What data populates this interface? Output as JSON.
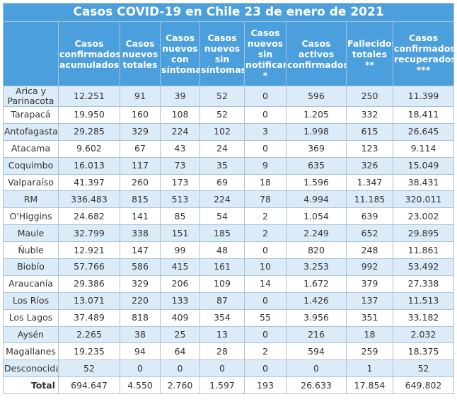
{
  "header": {
    "title": "Casos COVID-19 en Chile 23 de enero de 2021"
  },
  "table": {
    "columns": [
      "Casos confirmados acumulados",
      "Casos nuevos totales",
      "Casos nuevos con síntomas",
      "Casos nuevos sin síntomas",
      "Casos nuevos sin notificar *",
      "Casos activos confirmados",
      "Fallecidos totales **",
      "Casos confirmados recuperados ***"
    ],
    "rows": [
      [
        "Arica y Parinacota",
        "12.251",
        "91",
        "39",
        "52",
        "0",
        "596",
        "250",
        "11.399"
      ],
      [
        "Tarapacá",
        "19.950",
        "160",
        "108",
        "52",
        "0",
        "1.205",
        "332",
        "18.411"
      ],
      [
        "Antofagasta",
        "29.285",
        "329",
        "224",
        "102",
        "3",
        "1.998",
        "615",
        "26.645"
      ],
      [
        "Atacama",
        "9.602",
        "67",
        "43",
        "24",
        "0",
        "369",
        "123",
        "9.114"
      ],
      [
        "Coquimbo",
        "16.013",
        "117",
        "73",
        "35",
        "9",
        "635",
        "326",
        "15.049"
      ],
      [
        "Valparaíso",
        "41.397",
        "260",
        "173",
        "69",
        "18",
        "1.596",
        "1.347",
        "38.431"
      ],
      [
        "RM",
        "336.483",
        "815",
        "513",
        "224",
        "78",
        "4.994",
        "11.185",
        "320.011"
      ],
      [
        "O'Higgins",
        "24.682",
        "141",
        "85",
        "54",
        "2",
        "1.054",
        "639",
        "23.002"
      ],
      [
        "Maule",
        "32.799",
        "338",
        "151",
        "185",
        "2",
        "2.249",
        "652",
        "29.895"
      ],
      [
        "Ñuble",
        "12.921",
        "147",
        "99",
        "48",
        "0",
        "820",
        "248",
        "11.861"
      ],
      [
        "Biobío",
        "57.766",
        "586",
        "415",
        "161",
        "10",
        "3.253",
        "992",
        "53.492"
      ],
      [
        "Araucanía",
        "29.386",
        "329",
        "206",
        "109",
        "14",
        "1.672",
        "379",
        "27.338"
      ],
      [
        "Los Ríos",
        "13.071",
        "220",
        "133",
        "87",
        "0",
        "1.426",
        "137",
        "11.513"
      ],
      [
        "Los Lagos",
        "37.489",
        "818",
        "409",
        "354",
        "55",
        "3.956",
        "351",
        "33.182"
      ],
      [
        "Aysén",
        "2.265",
        "38",
        "25",
        "13",
        "0",
        "216",
        "18",
        "2.032"
      ],
      [
        "Magallanes",
        "19.235",
        "94",
        "64",
        "28",
        "2",
        "594",
        "259",
        "18.375"
      ],
      [
        "Desconocida",
        "52",
        "0",
        "0",
        "0",
        "0",
        "0",
        "1",
        "52"
      ]
    ],
    "total": [
      "Total",
      "694.647",
      "4.550",
      "2.760",
      "1.597",
      "193",
      "26.633",
      "17.854",
      "649.802"
    ]
  }
}
